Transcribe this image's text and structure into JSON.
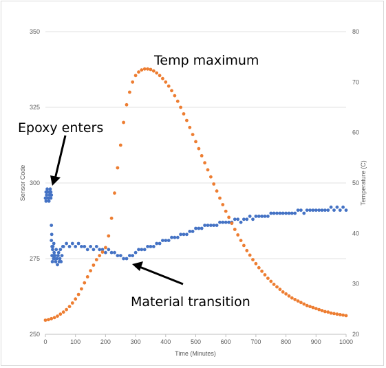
{
  "chart_data": {
    "type": "scatter",
    "title": "",
    "xlabel": "Time (Minutes)",
    "ylabel_left": "Sensor Code",
    "ylabel_right": "Temperature (C)",
    "xlim": [
      0,
      1000
    ],
    "ylim_left": [
      250,
      350
    ],
    "ylim_right": [
      20,
      80
    ],
    "x_ticks": [
      "0",
      "100",
      "200",
      "300",
      "400",
      "500",
      "600",
      "700",
      "800",
      "900",
      "1000"
    ],
    "y_left_ticks": [
      "250",
      "275",
      "300",
      "325",
      "350"
    ],
    "y_right_ticks": [
      "20",
      "30",
      "40",
      "50",
      "60",
      "70",
      "80"
    ],
    "gridlines": true,
    "legend": "none",
    "annotations": {
      "epoxy": "Epoxy enters",
      "temp_max": "Temp maximum",
      "material": "Material transition"
    },
    "series": [
      {
        "axis": "left",
        "color": "#4472C4",
        "points": [
          [
            0,
            295
          ],
          [
            2,
            297
          ],
          [
            4,
            296
          ],
          [
            6,
            298
          ],
          [
            8,
            295
          ],
          [
            10,
            297
          ],
          [
            12,
            294
          ],
          [
            14,
            296
          ],
          [
            16,
            298
          ],
          [
            18,
            295
          ],
          [
            20,
            296
          ],
          [
            2,
            294
          ],
          [
            6,
            297
          ],
          [
            10,
            295
          ],
          [
            14,
            297
          ],
          [
            18,
            297
          ],
          [
            20,
            286
          ],
          [
            20,
            281
          ],
          [
            21,
            283
          ],
          [
            22,
            279
          ],
          [
            22,
            276
          ],
          [
            23,
            274
          ],
          [
            24,
            278
          ],
          [
            25,
            279
          ],
          [
            26,
            276
          ],
          [
            27,
            275
          ],
          [
            28,
            280
          ],
          [
            29,
            277
          ],
          [
            30,
            275
          ],
          [
            32,
            276
          ],
          [
            34,
            274
          ],
          [
            36,
            278
          ],
          [
            38,
            275
          ],
          [
            40,
            273
          ],
          [
            42,
            276
          ],
          [
            44,
            277
          ],
          [
            46,
            274
          ],
          [
            48,
            275
          ],
          [
            50,
            278
          ],
          [
            52,
            274
          ],
          [
            55,
            276
          ],
          [
            58,
            279
          ],
          [
            60,
            279
          ],
          [
            70,
            280
          ],
          [
            80,
            279
          ],
          [
            90,
            280
          ],
          [
            100,
            279
          ],
          [
            110,
            280
          ],
          [
            120,
            279
          ],
          [
            130,
            279
          ],
          [
            140,
            278
          ],
          [
            150,
            279
          ],
          [
            160,
            278
          ],
          [
            170,
            279
          ],
          [
            180,
            278
          ],
          [
            190,
            278
          ],
          [
            200,
            277
          ],
          [
            210,
            278
          ],
          [
            220,
            277
          ],
          [
            230,
            277
          ],
          [
            240,
            276
          ],
          [
            250,
            276
          ],
          [
            260,
            275
          ],
          [
            270,
            275
          ],
          [
            280,
            276
          ],
          [
            290,
            276
          ],
          [
            300,
            277
          ],
          [
            310,
            278
          ],
          [
            320,
            278
          ],
          [
            330,
            278
          ],
          [
            340,
            279
          ],
          [
            350,
            279
          ],
          [
            360,
            279
          ],
          [
            370,
            280
          ],
          [
            380,
            280
          ],
          [
            390,
            281
          ],
          [
            400,
            281
          ],
          [
            410,
            281
          ],
          [
            420,
            282
          ],
          [
            430,
            282
          ],
          [
            440,
            282
          ],
          [
            450,
            283
          ],
          [
            460,
            283
          ],
          [
            470,
            283
          ],
          [
            480,
            284
          ],
          [
            490,
            284
          ],
          [
            500,
            285
          ],
          [
            510,
            285
          ],
          [
            520,
            285
          ],
          [
            530,
            286
          ],
          [
            540,
            286
          ],
          [
            550,
            286
          ],
          [
            560,
            286
          ],
          [
            570,
            286
          ],
          [
            580,
            287
          ],
          [
            590,
            287
          ],
          [
            600,
            287
          ],
          [
            610,
            287
          ],
          [
            620,
            287
          ],
          [
            630,
            288
          ],
          [
            640,
            288
          ],
          [
            650,
            287
          ],
          [
            660,
            288
          ],
          [
            670,
            288
          ],
          [
            680,
            289
          ],
          [
            690,
            288
          ],
          [
            700,
            289
          ],
          [
            710,
            289
          ],
          [
            720,
            289
          ],
          [
            730,
            289
          ],
          [
            740,
            289
          ],
          [
            750,
            290
          ],
          [
            760,
            290
          ],
          [
            770,
            290
          ],
          [
            780,
            290
          ],
          [
            790,
            290
          ],
          [
            800,
            290
          ],
          [
            810,
            290
          ],
          [
            820,
            290
          ],
          [
            830,
            290
          ],
          [
            840,
            291
          ],
          [
            850,
            291
          ],
          [
            860,
            290
          ],
          [
            870,
            291
          ],
          [
            880,
            291
          ],
          [
            890,
            291
          ],
          [
            900,
            291
          ],
          [
            910,
            291
          ],
          [
            920,
            291
          ],
          [
            930,
            291
          ],
          [
            940,
            291
          ],
          [
            950,
            292
          ],
          [
            960,
            291
          ],
          [
            970,
            292
          ],
          [
            980,
            291
          ],
          [
            990,
            292
          ],
          [
            1000,
            291
          ]
        ]
      },
      {
        "axis": "right",
        "color": "#ED7D31",
        "points": [
          [
            0,
            22.8
          ],
          [
            10,
            22.9
          ],
          [
            20,
            23.1
          ],
          [
            30,
            23.3
          ],
          [
            40,
            23.6
          ],
          [
            50,
            24.0
          ],
          [
            60,
            24.4
          ],
          [
            70,
            24.9
          ],
          [
            80,
            25.5
          ],
          [
            90,
            26.2
          ],
          [
            100,
            27.0
          ],
          [
            110,
            27.9
          ],
          [
            120,
            29.0
          ],
          [
            130,
            30.2
          ],
          [
            140,
            31.4
          ],
          [
            150,
            32.6
          ],
          [
            160,
            33.7
          ],
          [
            170,
            34.8
          ],
          [
            180,
            35.6
          ],
          [
            190,
            36.3
          ],
          [
            200,
            37.2
          ],
          [
            210,
            39.5
          ],
          [
            220,
            43.0
          ],
          [
            230,
            48.0
          ],
          [
            240,
            53.0
          ],
          [
            250,
            57.5
          ],
          [
            260,
            62.0
          ],
          [
            270,
            65.5
          ],
          [
            280,
            68.0
          ],
          [
            290,
            70.0
          ],
          [
            300,
            71.3
          ],
          [
            310,
            72.0
          ],
          [
            320,
            72.4
          ],
          [
            330,
            72.6
          ],
          [
            340,
            72.6
          ],
          [
            350,
            72.5
          ],
          [
            360,
            72.2
          ],
          [
            370,
            71.8
          ],
          [
            380,
            71.3
          ],
          [
            390,
            70.7
          ],
          [
            400,
            70.0
          ],
          [
            410,
            69.2
          ],
          [
            420,
            68.3
          ],
          [
            430,
            67.3
          ],
          [
            440,
            66.2
          ],
          [
            450,
            65.0
          ],
          [
            460,
            63.7
          ],
          [
            470,
            62.4
          ],
          [
            480,
            61.0
          ],
          [
            490,
            59.6
          ],
          [
            500,
            58.2
          ],
          [
            510,
            56.8
          ],
          [
            520,
            55.4
          ],
          [
            530,
            54.0
          ],
          [
            540,
            52.6
          ],
          [
            550,
            51.2
          ],
          [
            560,
            49.8
          ],
          [
            570,
            48.4
          ],
          [
            580,
            47.0
          ],
          [
            590,
            45.7
          ],
          [
            600,
            44.4
          ],
          [
            610,
            43.2
          ],
          [
            620,
            42.0
          ],
          [
            630,
            40.8
          ],
          [
            640,
            39.7
          ],
          [
            650,
            38.6
          ],
          [
            660,
            37.6
          ],
          [
            670,
            36.6
          ],
          [
            680,
            35.7
          ],
          [
            690,
            34.8
          ],
          [
            700,
            34.0
          ],
          [
            710,
            33.2
          ],
          [
            720,
            32.5
          ],
          [
            730,
            31.8
          ],
          [
            740,
            31.1
          ],
          [
            750,
            30.5
          ],
          [
            760,
            29.9
          ],
          [
            770,
            29.4
          ],
          [
            780,
            28.9
          ],
          [
            790,
            28.4
          ],
          [
            800,
            28.0
          ],
          [
            810,
            27.6
          ],
          [
            820,
            27.2
          ],
          [
            830,
            26.9
          ],
          [
            840,
            26.6
          ],
          [
            850,
            26.3
          ],
          [
            860,
            26.0
          ],
          [
            870,
            25.7
          ],
          [
            880,
            25.5
          ],
          [
            890,
            25.3
          ],
          [
            900,
            25.1
          ],
          [
            910,
            24.9
          ],
          [
            920,
            24.7
          ],
          [
            930,
            24.5
          ],
          [
            940,
            24.4
          ],
          [
            950,
            24.2
          ],
          [
            960,
            24.1
          ],
          [
            970,
            24.0
          ],
          [
            980,
            23.9
          ],
          [
            990,
            23.8
          ],
          [
            1000,
            23.7
          ]
        ]
      }
    ]
  }
}
